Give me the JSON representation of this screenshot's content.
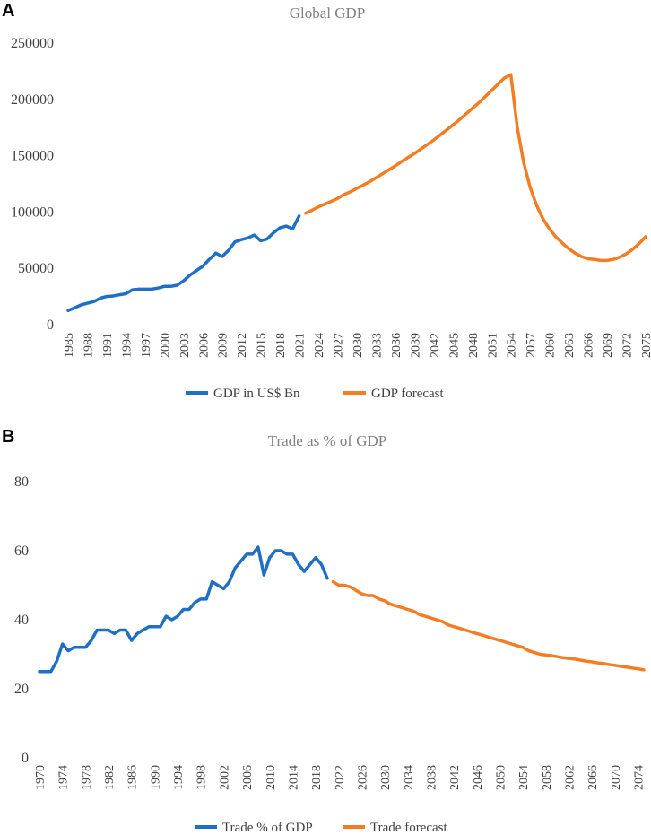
{
  "chart_data": [
    {
      "panel_label": "A",
      "type": "line",
      "title": "Global GDP",
      "xlabel": "",
      "ylabel": "",
      "ylim": [
        0,
        250000
      ],
      "yticks": [
        0,
        50000,
        100000,
        150000,
        200000,
        250000
      ],
      "yticks_labels": [
        "0",
        "50000",
        "100000",
        "150000",
        "200000",
        "250000"
      ],
      "xlim": [
        1985,
        2075
      ],
      "xticks": [
        "1985",
        "1988",
        "1991",
        "1994",
        "1997",
        "2000",
        "2003",
        "2006",
        "2009",
        "2012",
        "2015",
        "2018",
        "2021",
        "2024",
        "2027",
        "2030",
        "2033",
        "2036",
        "2039",
        "2042",
        "2045",
        "2048",
        "2051",
        "2054",
        "2057",
        "2060",
        "2063",
        "2066",
        "2069",
        "2072",
        "2075"
      ],
      "grid": false,
      "legend": "bottom",
      "series": [
        {
          "name": "GDP in US$ Bn",
          "color": "#1f6fc5",
          "x": [
            1985,
            1986,
            1987,
            1988,
            1989,
            1990,
            1991,
            1992,
            1993,
            1994,
            1995,
            1996,
            1997,
            1998,
            1999,
            2000,
            2001,
            2002,
            2003,
            2004,
            2005,
            2006,
            2007,
            2008,
            2009,
            2010,
            2011,
            2012,
            2013,
            2014,
            2015,
            2016,
            2017,
            2018,
            2019,
            2020,
            2021
          ],
          "y": [
            12500,
            15000,
            17500,
            19000,
            20500,
            23500,
            25000,
            25500,
            26500,
            27500,
            31000,
            31500,
            31500,
            31500,
            32500,
            34000,
            34000,
            35000,
            39000,
            44000,
            48000,
            52000,
            58000,
            63500,
            60500,
            66000,
            73500,
            75500,
            77000,
            79500,
            74500,
            76000,
            81500,
            86000,
            87500,
            85000,
            96500
          ]
        },
        {
          "name": "GDP forecast",
          "color": "#f47c22",
          "x": [
            2022,
            2023,
            2024,
            2025,
            2026,
            2027,
            2028,
            2029,
            2030,
            2031,
            2032,
            2033,
            2034,
            2035,
            2036,
            2037,
            2038,
            2039,
            2040,
            2041,
            2042,
            2043,
            2044,
            2045,
            2046,
            2047,
            2048,
            2049,
            2050,
            2051,
            2052,
            2053,
            2054,
            2055,
            2056,
            2057,
            2058,
            2059,
            2060,
            2061,
            2062,
            2063,
            2064,
            2065,
            2066,
            2067,
            2068,
            2069,
            2070,
            2071,
            2072,
            2073,
            2074,
            2075
          ],
          "y": [
            99000,
            101500,
            104500,
            107000,
            109500,
            112000,
            115500,
            118000,
            121000,
            124000,
            127000,
            130500,
            134000,
            137500,
            141000,
            145000,
            148500,
            152000,
            156000,
            160000,
            164000,
            168500,
            173000,
            177500,
            182000,
            187000,
            192000,
            197000,
            202500,
            208000,
            213500,
            219000,
            222000,
            175000,
            144000,
            122000,
            106000,
            94000,
            85000,
            78000,
            72500,
            67500,
            63500,
            60500,
            58500,
            58000,
            57000,
            57000,
            58000,
            60000,
            63000,
            67000,
            72000,
            78000
          ]
        }
      ]
    },
    {
      "panel_label": "B",
      "type": "line",
      "title": "Trade as % of GDP",
      "xlabel": "",
      "ylabel": "",
      "ylim": [
        0,
        80
      ],
      "yticks": [
        0,
        20,
        40,
        60,
        80
      ],
      "yticks_labels": [
        "0",
        "20",
        "40",
        "60",
        "80"
      ],
      "xlim": [
        1970,
        2075
      ],
      "xticks": [
        "1970",
        "1974",
        "1978",
        "1982",
        "1986",
        "1990",
        "1994",
        "1998",
        "2002",
        "2006",
        "2010",
        "2014",
        "2018",
        "2022",
        "2026",
        "2030",
        "2034",
        "2038",
        "2042",
        "2046",
        "2050",
        "2054",
        "2058",
        "2062",
        "2066",
        "2070",
        "2074"
      ],
      "grid": false,
      "legend": "bottom",
      "series": [
        {
          "name": "Trade % of GDP",
          "color": "#1f6fc5",
          "x": [
            1970,
            1971,
            1972,
            1973,
            1974,
            1975,
            1976,
            1977,
            1978,
            1979,
            1980,
            1981,
            1982,
            1983,
            1984,
            1985,
            1986,
            1987,
            1988,
            1989,
            1990,
            1991,
            1992,
            1993,
            1994,
            1995,
            1996,
            1997,
            1998,
            1999,
            2000,
            2001,
            2002,
            2003,
            2004,
            2005,
            2006,
            2007,
            2008,
            2009,
            2010,
            2011,
            2012,
            2013,
            2014,
            2015,
            2016,
            2017,
            2018,
            2019,
            2020
          ],
          "y": [
            25,
            25,
            25,
            28,
            33,
            31,
            32,
            32,
            32,
            34,
            37,
            37,
            37,
            36,
            37,
            37,
            34,
            36,
            37,
            38,
            38,
            38,
            41,
            40,
            41,
            43,
            43,
            45,
            46,
            46,
            51,
            50,
            49,
            51,
            55,
            57,
            59,
            59,
            61,
            53,
            58,
            60,
            60,
            59,
            59,
            56,
            54,
            56,
            58,
            56,
            52
          ]
        },
        {
          "name": "Trade forecast",
          "color": "#f47c22",
          "x": [
            2021,
            2022,
            2023,
            2024,
            2025,
            2026,
            2027,
            2028,
            2029,
            2030,
            2031,
            2032,
            2033,
            2034,
            2035,
            2036,
            2037,
            2038,
            2039,
            2040,
            2041,
            2042,
            2043,
            2044,
            2045,
            2046,
            2047,
            2048,
            2049,
            2050,
            2051,
            2052,
            2053,
            2054,
            2055,
            2056,
            2057,
            2058,
            2059,
            2060,
            2061,
            2062,
            2063,
            2064,
            2065,
            2066,
            2067,
            2068,
            2069,
            2070,
            2071,
            2072,
            2073,
            2074,
            2075
          ],
          "y": [
            51,
            50,
            50,
            49.5,
            48.5,
            47.5,
            47,
            47,
            46,
            45.5,
            44.5,
            44,
            43.5,
            43,
            42.5,
            41.5,
            41,
            40.5,
            40,
            39.5,
            38.5,
            38,
            37.5,
            37,
            36.5,
            36,
            35.5,
            35,
            34.5,
            34,
            33.5,
            33,
            32.5,
            32,
            31,
            30.5,
            30,
            29.8,
            29.6,
            29.3,
            29,
            28.8,
            28.6,
            28.3,
            28,
            27.8,
            27.5,
            27.3,
            27,
            26.8,
            26.5,
            26.3,
            26,
            25.8,
            25.5
          ]
        }
      ]
    }
  ]
}
